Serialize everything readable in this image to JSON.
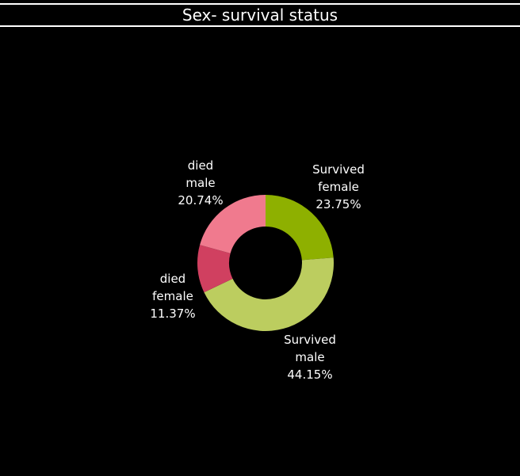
{
  "title": "Sex- survival status",
  "colors": {
    "background": "#000000",
    "text": "#ffffff"
  },
  "chart_data": {
    "type": "pie",
    "title": "Sex- survival status",
    "donut": true,
    "slices": [
      {
        "status": "Survived",
        "sex": "female",
        "percent_label": "23.75%",
        "value": 23.75,
        "color": "#8eb000"
      },
      {
        "status": "Survived",
        "sex": "male",
        "percent_label": "44.15%",
        "value": 44.15,
        "color": "#bccd5f"
      },
      {
        "status": "died",
        "sex": "female",
        "percent_label": "11.37%",
        "value": 11.37,
        "color": "#d04060"
      },
      {
        "status": "died",
        "sex": "male",
        "percent_label": "20.74%",
        "value": 20.74,
        "color": "#f07a8e"
      }
    ]
  }
}
